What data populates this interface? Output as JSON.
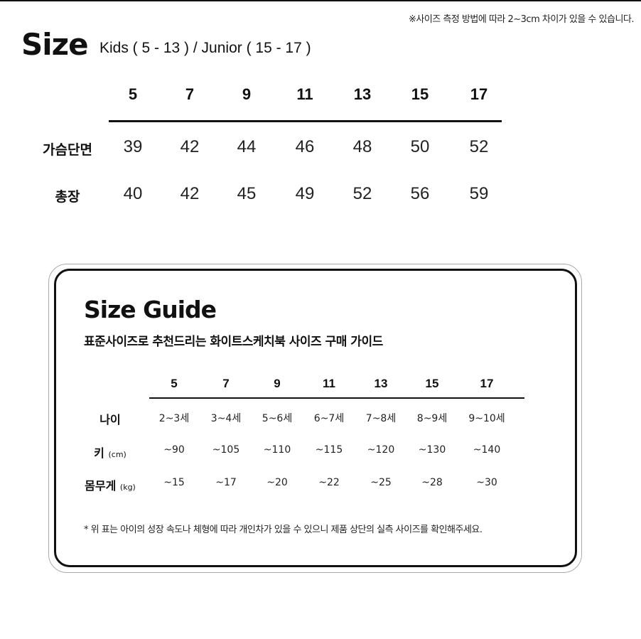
{
  "note": "※사이즈 측정 방법에 따라 2~3cm 차이가 있을 수 있습니다.",
  "title": "Size",
  "subtitle": "Kids ( 5 - 13 ) / Junior ( 15 - 17 )",
  "size_table": {
    "headers": [
      "5",
      "7",
      "9",
      "11",
      "13",
      "15",
      "17"
    ],
    "rows": [
      {
        "label": "가슴단면",
        "values": [
          "39",
          "42",
          "44",
          "46",
          "48",
          "50",
          "52"
        ]
      },
      {
        "label": "총장",
        "values": [
          "40",
          "42",
          "45",
          "49",
          "52",
          "56",
          "59"
        ]
      }
    ]
  },
  "guide": {
    "title": "Size Guide",
    "subtitle": "표준사이즈로 추천드리는 화이트스케치북 사이즈 구매 가이드",
    "headers": [
      "5",
      "7",
      "9",
      "11",
      "13",
      "15",
      "17"
    ],
    "rows": [
      {
        "label": "나이",
        "unit": "",
        "values": [
          "2~3세",
          "3~4세",
          "5~6세",
          "6~7세",
          "7~8세",
          "8~9세",
          "9~10세"
        ]
      },
      {
        "label": "키",
        "unit": "(cm)",
        "values": [
          "~90",
          "~105",
          "~110",
          "~115",
          "~120",
          "~130",
          "~140"
        ]
      },
      {
        "label": "몸무게",
        "unit": "(kg)",
        "values": [
          "~15",
          "~17",
          "~20",
          "~22",
          "~25",
          "~28",
          "~30"
        ]
      }
    ],
    "footnote": "* 위 표는 아이의 성장 속도나 체형에 따라 개인차가 있을 수 있으니 제품 상단의 실측 사이즈를 확인해주세요."
  }
}
